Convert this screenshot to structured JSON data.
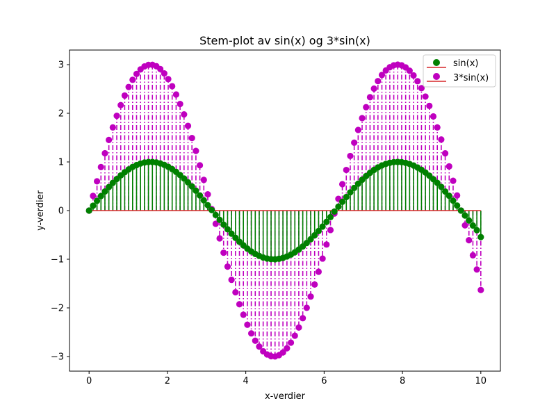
{
  "chart_data": {
    "type": "stem",
    "title": "Stem-plot av sin(x) og 3*sin(x)",
    "xlabel": "x-verdier",
    "ylabel": "y-verdier",
    "xlim": [
      -0.5,
      10.5
    ],
    "ylim": [
      -3.3,
      3.3
    ],
    "xticks": [
      0,
      2,
      4,
      6,
      8,
      10
    ],
    "xtick_labels": [
      "0",
      "2",
      "4",
      "6",
      "8",
      "10"
    ],
    "yticks": [
      -3,
      -2,
      -1,
      0,
      1,
      2,
      3
    ],
    "ytick_labels": [
      "−3",
      "−2",
      "−1",
      "0",
      "1",
      "2",
      "3"
    ],
    "grid": false,
    "legend_position": "top-right",
    "x": [
      0.0,
      0.101,
      0.202,
      0.303,
      0.404,
      0.505,
      0.606,
      0.707,
      0.808,
      0.909,
      1.01,
      1.111,
      1.212,
      1.313,
      1.414,
      1.515,
      1.616,
      1.717,
      1.818,
      1.919,
      2.02,
      2.121,
      2.222,
      2.323,
      2.424,
      2.525,
      2.626,
      2.727,
      2.828,
      2.929,
      3.03,
      3.131,
      3.232,
      3.333,
      3.434,
      3.535,
      3.636,
      3.737,
      3.838,
      3.939,
      4.04,
      4.141,
      4.242,
      4.343,
      4.444,
      4.545,
      4.646,
      4.747,
      4.848,
      4.949,
      5.051,
      5.152,
      5.253,
      5.354,
      5.455,
      5.556,
      5.657,
      5.758,
      5.859,
      5.96,
      6.061,
      6.162,
      6.263,
      6.364,
      6.465,
      6.566,
      6.667,
      6.768,
      6.869,
      6.97,
      7.071,
      7.172,
      7.273,
      7.374,
      7.475,
      7.576,
      7.677,
      7.778,
      7.879,
      7.98,
      8.081,
      8.182,
      8.283,
      8.384,
      8.485,
      8.586,
      8.687,
      8.788,
      8.889,
      8.99,
      9.091,
      9.192,
      9.293,
      9.394,
      9.495,
      9.596,
      9.697,
      9.798,
      9.899,
      10.0
    ],
    "series": [
      {
        "name": "sin(x)",
        "color": "#008000",
        "stem_color": "#008000",
        "stem_style": "solid",
        "values": [
          0.0,
          0.1008,
          0.2006,
          0.2984,
          0.3931,
          0.4838,
          0.5696,
          0.6494,
          0.7226,
          0.7884,
          0.8468,
          0.8961,
          0.9364,
          0.9672,
          0.9879,
          0.9984,
          0.999,
          0.9893,
          0.9695,
          0.9399,
          0.9009,
          0.8522,
          0.7953,
          0.7304,
          0.6588,
          0.5804,
          0.4969,
          0.4091,
          0.3102,
          0.2102,
          0.1113,
          0.01,
          -0.0905,
          -0.1905,
          -0.2885,
          -0.3838,
          -0.4744,
          -0.5598,
          -0.6417,
          -0.7137,
          -0.7822,
          -0.8414,
          -0.8916,
          -0.9315,
          -0.9641,
          -0.9858,
          -0.9975,
          -0.9996,
          -0.9907,
          -0.9723,
          -0.9434,
          -0.905,
          -0.8574,
          -0.8012,
          -0.7372,
          -0.6663,
          -0.589,
          -0.5064,
          -0.4192,
          -0.3289,
          -0.2325,
          -0.1331,
          -0.0201,
          0.0805,
          0.1808,
          0.2783,
          0.3742,
          0.4654,
          0.5526,
          0.6334,
          0.7085,
          0.7768,
          0.8359,
          0.8872,
          0.9294,
          0.9601,
          0.9822,
          0.9956,
          0.9999,
          0.9952,
          0.9808,
          0.9582,
          0.9263,
          0.8865,
          0.8387,
          0.7813,
          0.7173,
          0.6454,
          0.5698,
          0.4868,
          0.3923,
          0.3031,
          0.2042,
          0.1034,
          0.0002,
          -0.1013,
          -0.2031,
          -0.3067,
          -0.4035,
          -0.544
        ]
      },
      {
        "name": "3*sin(x)",
        "color": "#bf00bf",
        "stem_color": "#bf00bf",
        "stem_style": "dashdot",
        "values": [
          0.0,
          0.3024,
          0.6018,
          0.8952,
          1.1793,
          1.4514,
          1.7088,
          1.9482,
          2.1678,
          2.3652,
          2.5404,
          2.6883,
          2.8092,
          2.9016,
          2.9637,
          2.9952,
          2.997,
          2.9679,
          2.9085,
          2.8197,
          2.7027,
          2.5566,
          2.3859,
          2.1912,
          1.9764,
          1.7412,
          1.4907,
          1.2273,
          0.9306,
          0.6306,
          0.3339,
          0.03,
          -0.2715,
          -0.5715,
          -0.8655,
          -1.1514,
          -1.4232,
          -1.6794,
          -1.9251,
          -2.1411,
          -2.3466,
          -2.5242,
          -2.6748,
          -2.7945,
          -2.8923,
          -2.9574,
          -2.9925,
          -2.9988,
          -2.9721,
          -2.9169,
          -2.8302,
          -2.715,
          -2.5722,
          -2.4036,
          -2.2116,
          -1.9989,
          -1.767,
          -1.5192,
          -1.2576,
          -0.9867,
          -0.6975,
          -0.3993,
          -0.0603,
          0.2415,
          0.5424,
          0.8349,
          1.1226,
          1.3962,
          1.6578,
          1.9002,
          2.1255,
          2.3304,
          2.5077,
          2.6616,
          2.7882,
          2.8803,
          2.9466,
          2.9868,
          2.9997,
          2.9856,
          2.9424,
          2.8746,
          2.7789,
          2.6595,
          2.5161,
          2.3439,
          2.1519,
          1.9362,
          1.7094,
          1.4604,
          1.1769,
          0.9093,
          0.6126,
          0.3102,
          0.0006,
          -0.3039,
          -0.6093,
          -0.9201,
          -1.2105,
          -1.632
        ]
      }
    ],
    "baseline": {
      "y": 0,
      "color": "#d62728"
    }
  }
}
